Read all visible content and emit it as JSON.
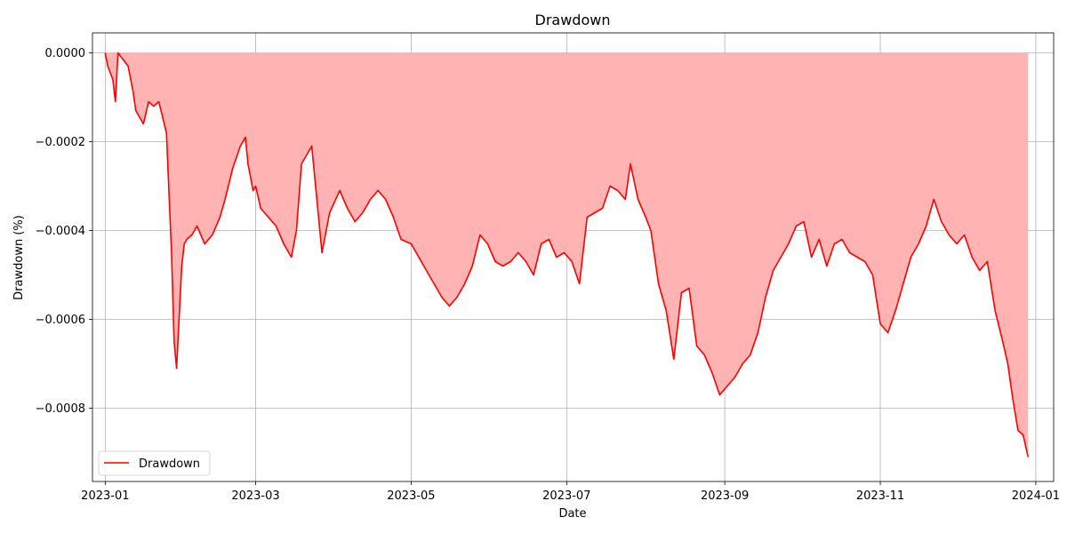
{
  "chart_data": {
    "type": "area",
    "title": "Drawdown",
    "xlabel": "Date",
    "ylabel": "Drawdown (%)",
    "xlim": [
      "2022-12-27",
      "2024-01-08"
    ],
    "ylim": [
      -0.000965,
      4.5e-05
    ],
    "x_ticks": [
      "2023-01",
      "2023-03",
      "2023-05",
      "2023-07",
      "2023-09",
      "2023-11",
      "2024-01"
    ],
    "y_ticks": [
      "0.0000",
      "−0.0002",
      "−0.0004",
      "−0.0006",
      "−0.0008"
    ],
    "grid": true,
    "legend_position": "lower-left",
    "line_color": "#ff0000",
    "fill_color": "#ffb3b3",
    "series": [
      {
        "name": "Drawdown",
        "x": [
          "2023-01-01",
          "2023-01-02",
          "2023-01-04",
          "2023-01-05",
          "2023-01-06",
          "2023-01-10",
          "2023-01-12",
          "2023-01-13",
          "2023-01-16",
          "2023-01-18",
          "2023-01-20",
          "2023-01-22",
          "2023-01-25",
          "2023-01-27",
          "2023-01-28",
          "2023-01-29",
          "2023-01-31",
          "2023-02-01",
          "2023-02-02",
          "2023-02-04",
          "2023-02-06",
          "2023-02-09",
          "2023-02-12",
          "2023-02-15",
          "2023-02-17",
          "2023-02-20",
          "2023-02-23",
          "2023-02-25",
          "2023-02-26",
          "2023-02-28",
          "2023-03-01",
          "2023-03-03",
          "2023-03-06",
          "2023-03-09",
          "2023-03-12",
          "2023-03-15",
          "2023-03-17",
          "2023-03-19",
          "2023-03-23",
          "2023-03-27",
          "2023-03-30",
          "2023-04-03",
          "2023-04-06",
          "2023-04-09",
          "2023-04-12",
          "2023-04-15",
          "2023-04-18",
          "2023-04-21",
          "2023-04-24",
          "2023-04-27",
          "2023-05-01",
          "2023-05-04",
          "2023-05-07",
          "2023-05-10",
          "2023-05-13",
          "2023-05-16",
          "2023-05-19",
          "2023-05-22",
          "2023-05-25",
          "2023-05-28",
          "2023-05-31",
          "2023-06-03",
          "2023-06-06",
          "2023-06-09",
          "2023-06-12",
          "2023-06-15",
          "2023-06-18",
          "2023-06-21",
          "2023-06-24",
          "2023-06-27",
          "2023-06-30",
          "2023-07-03",
          "2023-07-06",
          "2023-07-09",
          "2023-07-12",
          "2023-07-15",
          "2023-07-18",
          "2023-07-21",
          "2023-07-24",
          "2023-07-26",
          "2023-07-29",
          "2023-08-01",
          "2023-08-03",
          "2023-08-06",
          "2023-08-09",
          "2023-08-12",
          "2023-08-15",
          "2023-08-18",
          "2023-08-21",
          "2023-08-24",
          "2023-08-27",
          "2023-08-30",
          "2023-09-02",
          "2023-09-05",
          "2023-09-08",
          "2023-09-11",
          "2023-09-14",
          "2023-09-17",
          "2023-09-20",
          "2023-09-23",
          "2023-09-26",
          "2023-09-29",
          "2023-10-02",
          "2023-10-05",
          "2023-10-08",
          "2023-10-11",
          "2023-10-14",
          "2023-10-17",
          "2023-10-20",
          "2023-10-23",
          "2023-10-26",
          "2023-10-29",
          "2023-11-01",
          "2023-11-04",
          "2023-11-07",
          "2023-11-10",
          "2023-11-13",
          "2023-11-16",
          "2023-11-19",
          "2023-11-22",
          "2023-11-25",
          "2023-11-28",
          "2023-12-01",
          "2023-12-04",
          "2023-12-07",
          "2023-12-10",
          "2023-12-13",
          "2023-12-16",
          "2023-12-19",
          "2023-12-21",
          "2023-12-23",
          "2023-12-25",
          "2023-12-27",
          "2023-12-29"
        ],
        "values": [
          0,
          -3e-05,
          -6e-05,
          -0.00011,
          0,
          -3e-05,
          -9e-05,
          -0.00013,
          -0.00016,
          -0.00011,
          -0.00012,
          -0.00011,
          -0.00018,
          -0.00045,
          -0.00065,
          -0.00071,
          -0.00048,
          -0.00043,
          -0.00042,
          -0.00041,
          -0.00039,
          -0.00043,
          -0.00041,
          -0.00037,
          -0.00033,
          -0.00026,
          -0.00021,
          -0.00019,
          -0.00025,
          -0.00031,
          -0.0003,
          -0.00035,
          -0.00037,
          -0.00039,
          -0.00043,
          -0.00046,
          -0.0004,
          -0.00025,
          -0.00021,
          -0.00045,
          -0.00036,
          -0.00031,
          -0.00035,
          -0.00038,
          -0.00036,
          -0.00033,
          -0.00031,
          -0.00033,
          -0.00037,
          -0.00042,
          -0.00043,
          -0.00046,
          -0.00049,
          -0.00052,
          -0.00055,
          -0.00057,
          -0.00055,
          -0.00052,
          -0.00048,
          -0.00041,
          -0.00043,
          -0.00047,
          -0.00048,
          -0.00047,
          -0.00045,
          -0.00047,
          -0.0005,
          -0.00043,
          -0.00042,
          -0.00046,
          -0.00045,
          -0.00047,
          -0.00052,
          -0.00037,
          -0.00036,
          -0.00035,
          -0.0003,
          -0.00031,
          -0.00033,
          -0.00025,
          -0.00033,
          -0.00037,
          -0.0004,
          -0.00052,
          -0.00058,
          -0.00069,
          -0.00054,
          -0.00053,
          -0.00066,
          -0.00068,
          -0.00072,
          -0.00077,
          -0.00075,
          -0.00073,
          -0.0007,
          -0.00068,
          -0.00063,
          -0.00055,
          -0.00049,
          -0.00046,
          -0.00043,
          -0.00039,
          -0.00038,
          -0.00046,
          -0.00042,
          -0.00048,
          -0.00043,
          -0.00042,
          -0.00045,
          -0.00046,
          -0.00047,
          -0.0005,
          -0.00061,
          -0.00063,
          -0.00058,
          -0.00052,
          -0.00046,
          -0.00043,
          -0.00039,
          -0.00033,
          -0.00038,
          -0.00041,
          -0.00043,
          -0.00041,
          -0.00046,
          -0.00049,
          -0.00047,
          -0.00058,
          -0.00065,
          -0.0007,
          -0.00078,
          -0.00085,
          -0.00086,
          -0.00091
        ]
      }
    ]
  }
}
